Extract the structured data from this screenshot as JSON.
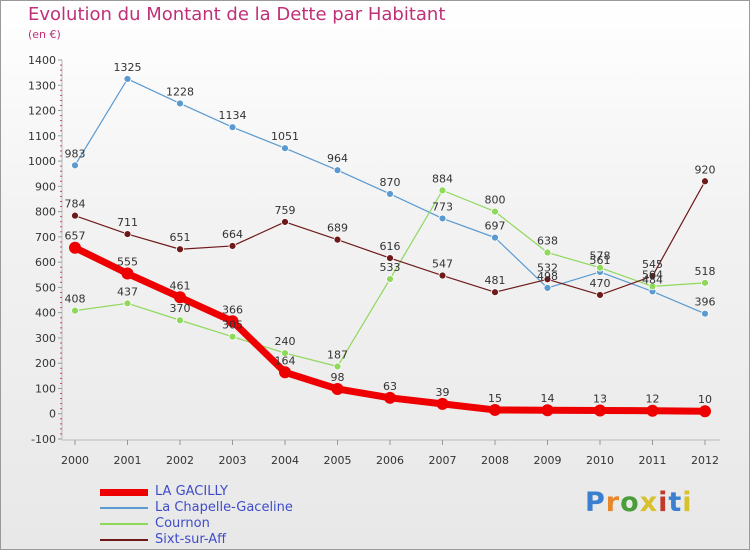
{
  "header": {
    "title": "Evolution du Montant de la Dette par Habitant",
    "subtitle": "(en €)"
  },
  "logo": {
    "text": "Proxiti",
    "colors": [
      "#3a7fd0",
      "#e8862a",
      "#4a9d3a",
      "#d8c12a",
      "#c0392b",
      "#3a7fd0",
      "#d8c12a"
    ]
  },
  "chart_data": {
    "type": "line",
    "title": "Evolution du Montant de la Dette par Habitant",
    "ylabel": "(en €)",
    "x": [
      "2000",
      "2001",
      "2002",
      "2003",
      "2004",
      "2005",
      "2006",
      "2007",
      "2008",
      "2009",
      "2010",
      "2011",
      "2012"
    ],
    "ylim": [
      -100,
      1400
    ],
    "yticks": [
      -100,
      0,
      100,
      200,
      300,
      400,
      500,
      600,
      700,
      800,
      900,
      1000,
      1100,
      1200,
      1300,
      1400
    ],
    "grid": false,
    "legend": "bottom-left",
    "series": [
      {
        "name": "La Chapelle-Gaceline",
        "color": "#5a9ad0",
        "values": [
          983,
          1325,
          1228,
          1134,
          1051,
          964,
          870,
          773,
          697,
          498,
          561,
          484,
          396
        ],
        "labels": [
          "983",
          "1325",
          "1228",
          "1134",
          "1051",
          "964",
          "870",
          "773",
          "697",
          "498",
          "561",
          "484",
          "396"
        ]
      },
      {
        "name": "Cournon",
        "color": "#8ed85a",
        "values": [
          408,
          437,
          370,
          305,
          240,
          187,
          533,
          884,
          800,
          638,
          578,
          504,
          518
        ],
        "labels": [
          "408",
          "437",
          "370",
          "305",
          "240",
          "187",
          "533",
          "884",
          "800",
          "638",
          "578",
          "504",
          "518"
        ]
      },
      {
        "name": "Sixt-sur-Aff",
        "color": "#6e1a1a",
        "values": [
          784,
          711,
          651,
          664,
          759,
          689,
          616,
          547,
          481,
          532,
          470,
          545,
          920
        ],
        "labels": [
          "784",
          "711",
          "651",
          "664",
          "759",
          "689",
          "616",
          "547",
          "481",
          "532",
          "470",
          "545",
          "920"
        ]
      },
      {
        "name": "LA GACILLY",
        "color": "#ee0000",
        "values": [
          657,
          555,
          461,
          366,
          164,
          98,
          63,
          39,
          15,
          14,
          13,
          12,
          10
        ],
        "labels": [
          "657",
          "555",
          "461",
          "366",
          "164",
          "98",
          "63",
          "39",
          "15",
          "14",
          "13",
          "12",
          "10"
        ]
      }
    ]
  },
  "legend": [
    {
      "label": "LA GACILLY",
      "color": "#ee0000",
      "thick": true
    },
    {
      "label": "La Chapelle-Gaceline",
      "color": "#5a9ad0",
      "thick": false
    },
    {
      "label": "Cournon",
      "color": "#8ed85a",
      "thick": false
    },
    {
      "label": "Sixt-sur-Aff",
      "color": "#6e1a1a",
      "thick": false
    }
  ]
}
